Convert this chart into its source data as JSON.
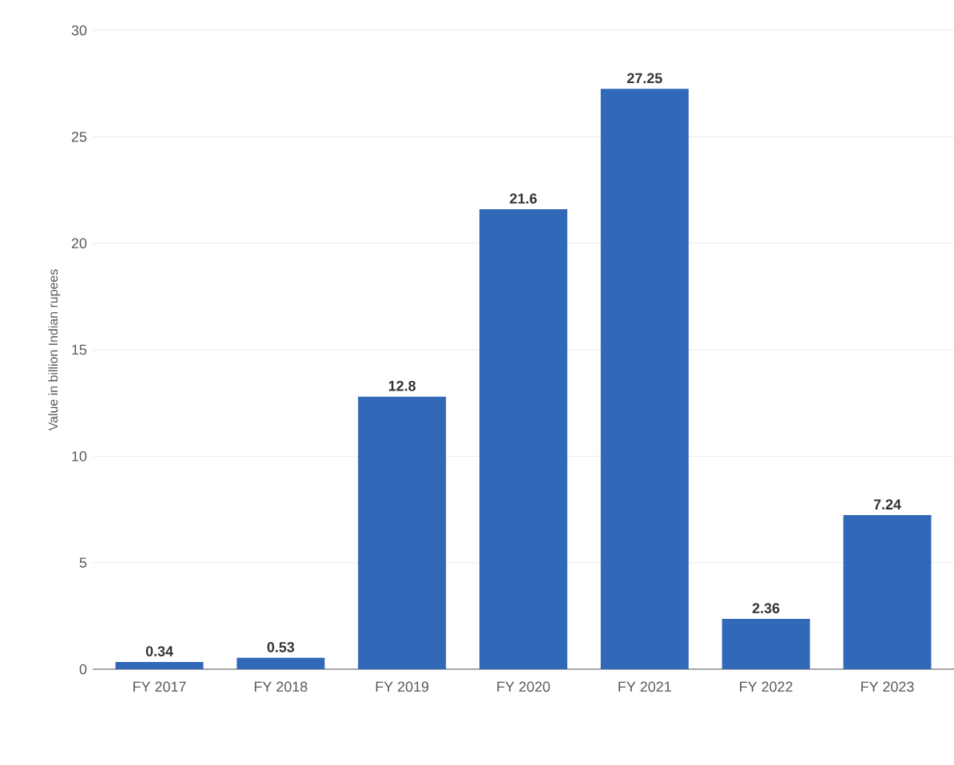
{
  "chart_data": {
    "type": "bar",
    "ylabel": "Value in billion Indian rupees",
    "categories": [
      "FY 2017",
      "FY 2018",
      "FY 2019",
      "FY 2020",
      "FY 2021",
      "FY 2022",
      "FY 2023"
    ],
    "values": [
      0.34,
      0.53,
      12.8,
      21.6,
      27.25,
      2.36,
      7.24
    ],
    "color": "#3268b8",
    "ylim": [
      0,
      30
    ],
    "yticks": [
      0,
      5,
      10,
      15,
      20,
      25,
      30
    ],
    "grid": "y",
    "data_labels": true
  }
}
